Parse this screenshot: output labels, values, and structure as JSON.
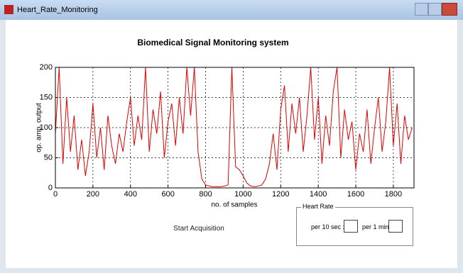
{
  "window": {
    "title": "Heart_Rate_Monitoring"
  },
  "chart_data": {
    "type": "line",
    "title": "Biomedical Signal Monitoring system",
    "x_label": "no. of samples",
    "y_label": "op. amp. output",
    "x": [
      0,
      20,
      40,
      60,
      80,
      100,
      120,
      140,
      160,
      180,
      200,
      220,
      240,
      260,
      280,
      300,
      320,
      340,
      360,
      380,
      400,
      420,
      440,
      460,
      480,
      500,
      520,
      540,
      560,
      580,
      600,
      620,
      640,
      660,
      680,
      700,
      720,
      740,
      760,
      780,
      800,
      820,
      840,
      860,
      880,
      900,
      920,
      940,
      960,
      980,
      1000,
      1020,
      1040,
      1060,
      1080,
      1100,
      1120,
      1140,
      1160,
      1180,
      1200,
      1220,
      1240,
      1260,
      1280,
      1300,
      1320,
      1340,
      1360,
      1380,
      1400,
      1420,
      1440,
      1460,
      1480,
      1500,
      1520,
      1540,
      1560,
      1580,
      1600,
      1620,
      1640,
      1660,
      1680,
      1700,
      1720,
      1740,
      1760,
      1780,
      1800,
      1820,
      1840,
      1860,
      1880,
      1900
    ],
    "values": [
      90,
      200,
      40,
      150,
      60,
      120,
      30,
      80,
      20,
      60,
      140,
      50,
      100,
      30,
      120,
      70,
      40,
      90,
      60,
      110,
      150,
      70,
      120,
      80,
      200,
      60,
      130,
      90,
      160,
      50,
      110,
      140,
      70,
      150,
      90,
      200,
      120,
      200,
      60,
      15,
      5,
      3,
      2,
      2,
      2,
      3,
      5,
      200,
      35,
      30,
      20,
      8,
      3,
      2,
      3,
      5,
      15,
      40,
      90,
      30,
      130,
      170,
      60,
      140,
      90,
      150,
      60,
      120,
      200,
      80,
      150,
      40,
      120,
      70,
      160,
      200,
      50,
      130,
      80,
      110,
      30,
      90,
      60,
      130,
      40,
      100,
      150,
      60,
      110,
      200,
      70,
      140,
      40,
      120,
      80,
      100
    ],
    "color": "#e00000",
    "xlim": [
      0,
      1910
    ],
    "ylim": [
      0,
      200
    ],
    "xticks": [
      0,
      200,
      400,
      600,
      800,
      1000,
      1200,
      1400,
      1600,
      1800
    ],
    "yticks": [
      0,
      50,
      100,
      150,
      200
    ],
    "grid": true
  },
  "controls": {
    "button": "Start Acquisition",
    "panel": {
      "title": "Heart Rate",
      "fields": [
        "per 10 sec :",
        "per 1 min :"
      ]
    }
  }
}
